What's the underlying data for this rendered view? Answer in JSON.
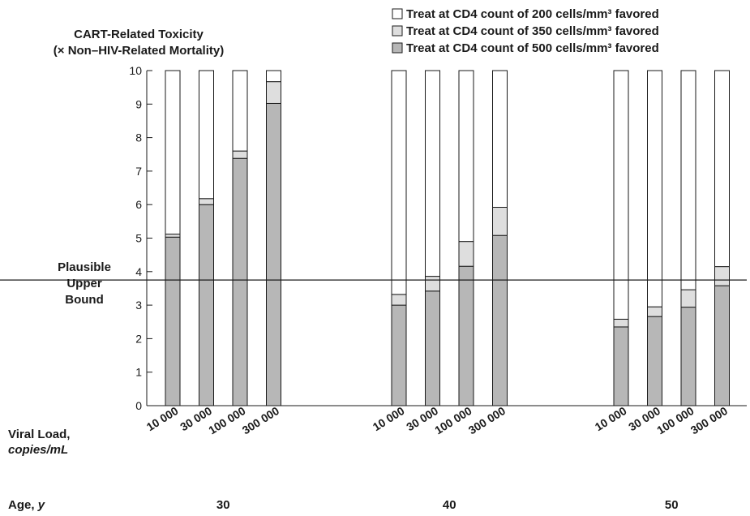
{
  "chart_data": {
    "type": "bar",
    "stacked": true,
    "title": "",
    "ylabel_line1": "CART-Related Toxicity",
    "ylabel_line2": "(× Non–HIV-Related Mortality)",
    "ylim": [
      0,
      10
    ],
    "yticks": [
      "0",
      "1",
      "2",
      "3",
      "4",
      "5",
      "6",
      "7",
      "8",
      "9",
      "10"
    ],
    "xlabel_line1": "Viral Load,",
    "xlabel_line2": "copies/mL",
    "age_label": "Age, ",
    "age_unit": "y",
    "reference_line": {
      "value": 3.75,
      "label_lines": [
        "Plausible",
        "Upper",
        "Bound"
      ]
    },
    "legend_position": "top-right",
    "legend": [
      {
        "label": "Treat at CD4 count of 200 cells/mm³ favored",
        "color": "#ffffff"
      },
      {
        "label": "Treat at CD4 count of 350 cells/mm³ favored",
        "color": "#dedede"
      },
      {
        "label": "Treat at CD4 count of 500 cells/mm³ favored",
        "color": "#b7b7b7"
      }
    ],
    "groups": [
      {
        "age": "30",
        "categories": [
          "10 000",
          "30 000",
          "100 000",
          "300 000"
        ],
        "cd4_500_upper": [
          5.03,
          6.0,
          7.38,
          9.02
        ],
        "cd4_350_upper": [
          5.12,
          6.18,
          7.6,
          9.67
        ],
        "max": [
          10,
          10,
          10,
          10
        ]
      },
      {
        "age": "40",
        "categories": [
          "10 000",
          "30 000",
          "100 000",
          "300 000"
        ],
        "cd4_500_upper": [
          3.0,
          3.42,
          4.16,
          5.08
        ],
        "cd4_350_upper": [
          3.32,
          3.86,
          4.9,
          5.92
        ],
        "max": [
          10,
          10,
          10,
          10
        ]
      },
      {
        "age": "50",
        "categories": [
          "10 000",
          "30 000",
          "100 000",
          "300 000"
        ],
        "cd4_500_upper": [
          2.35,
          2.66,
          2.94,
          3.58
        ],
        "cd4_350_upper": [
          2.58,
          2.95,
          3.46,
          4.15
        ],
        "max": [
          10,
          10,
          10,
          10
        ]
      }
    ]
  }
}
